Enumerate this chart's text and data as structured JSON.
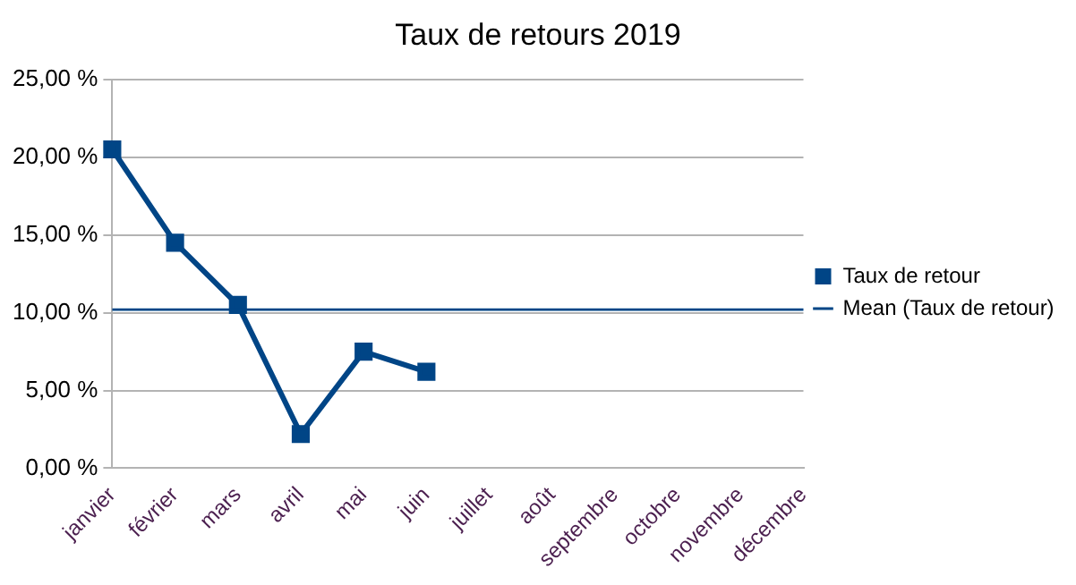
{
  "chart_data": {
    "type": "line",
    "title": "Taux de retours 2019",
    "categories": [
      "janvier",
      "février",
      "mars",
      "avril",
      "mai",
      "juin",
      "juillet",
      "août",
      "septembre",
      "octobre",
      "novembre",
      "décembre"
    ],
    "series": [
      {
        "name": "Taux de retour",
        "color": "#004586",
        "values": [
          20.5,
          14.5,
          10.5,
          2.2,
          7.5,
          6.2,
          null,
          null,
          null,
          null,
          null,
          null
        ]
      }
    ],
    "ylim": [
      0,
      25
    ],
    "yticks": [
      {
        "value": 0,
        "label": "0,00 %"
      },
      {
        "value": 5,
        "label": "5,00 %"
      },
      {
        "value": 10,
        "label": "10,00 %"
      },
      {
        "value": 15,
        "label": "15,00 %"
      },
      {
        "value": 20,
        "label": "20,00 %"
      },
      {
        "value": 25,
        "label": "25,00 %"
      }
    ],
    "ref_lines": [
      {
        "axis": "y",
        "value": 10.2,
        "label": "Mean (Taux de retour)",
        "color": "#004586",
        "line_style": "solid"
      }
    ],
    "grid": "y",
    "legend": "right",
    "marker": "square",
    "line_style": "solid"
  }
}
